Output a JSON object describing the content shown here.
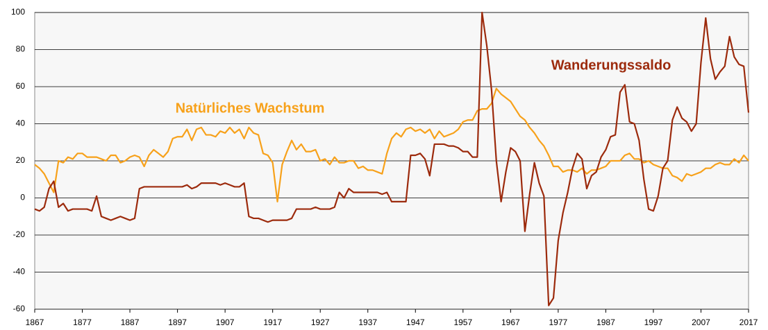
{
  "chart_data": {
    "type": "line",
    "x": [
      1867,
      1868,
      1869,
      1870,
      1871,
      1872,
      1873,
      1874,
      1875,
      1876,
      1877,
      1878,
      1879,
      1880,
      1881,
      1882,
      1883,
      1884,
      1885,
      1886,
      1887,
      1888,
      1889,
      1890,
      1891,
      1892,
      1893,
      1894,
      1895,
      1896,
      1897,
      1898,
      1899,
      1900,
      1901,
      1902,
      1903,
      1904,
      1905,
      1906,
      1907,
      1908,
      1909,
      1910,
      1911,
      1912,
      1913,
      1914,
      1915,
      1916,
      1917,
      1918,
      1919,
      1920,
      1921,
      1922,
      1923,
      1924,
      1925,
      1926,
      1927,
      1928,
      1929,
      1930,
      1931,
      1932,
      1933,
      1934,
      1935,
      1936,
      1937,
      1938,
      1939,
      1940,
      1941,
      1942,
      1943,
      1944,
      1945,
      1946,
      1947,
      1948,
      1949,
      1950,
      1951,
      1952,
      1953,
      1954,
      1955,
      1956,
      1957,
      1958,
      1959,
      1960,
      1961,
      1962,
      1963,
      1964,
      1965,
      1966,
      1967,
      1968,
      1969,
      1970,
      1971,
      1972,
      1973,
      1974,
      1975,
      1976,
      1977,
      1978,
      1979,
      1980,
      1981,
      1982,
      1983,
      1984,
      1985,
      1986,
      1987,
      1988,
      1989,
      1990,
      1991,
      1992,
      1993,
      1994,
      1995,
      1996,
      1997,
      1998,
      1999,
      2000,
      2001,
      2002,
      2003,
      2004,
      2005,
      2006,
      2007,
      2008,
      2009,
      2010,
      2011,
      2012,
      2013,
      2014,
      2015,
      2016,
      2017
    ],
    "series": [
      {
        "name": "Natürliches Wachstum",
        "color": "#f7a11a",
        "values": [
          18,
          16,
          13,
          8,
          3,
          20,
          19,
          22,
          21,
          24,
          24,
          22,
          22,
          22,
          21,
          20,
          23,
          23,
          19,
          20,
          22,
          23,
          22,
          17,
          23,
          26,
          24,
          22,
          25,
          32,
          33,
          33,
          37,
          31,
          37,
          38,
          34,
          34,
          33,
          36,
          35,
          38,
          35,
          37,
          32,
          38,
          35,
          34,
          24,
          23,
          19,
          -2,
          18,
          25,
          31,
          26,
          29,
          25,
          25,
          26,
          20,
          21,
          18,
          22,
          19,
          19,
          20,
          20,
          16,
          17,
          15,
          15,
          14,
          13,
          24,
          32,
          35,
          33,
          37,
          38,
          36,
          37,
          35,
          37,
          32,
          36,
          33,
          34,
          35,
          37,
          41,
          42,
          42,
          47,
          48,
          48,
          51,
          59,
          56,
          54,
          52,
          48,
          44,
          42,
          38,
          35,
          31,
          28,
          23,
          17,
          17,
          14,
          15,
          15,
          14,
          16,
          13,
          15,
          15,
          16,
          17,
          20,
          20,
          20,
          23,
          24,
          21,
          21,
          19,
          20,
          18,
          17,
          16,
          16,
          12,
          11,
          9,
          13,
          12,
          13,
          14,
          16,
          16,
          18,
          19,
          18,
          18,
          21,
          19,
          23,
          20
        ]
      },
      {
        "name": "Wanderungssaldo",
        "color": "#9c2a0c",
        "values": [
          -6,
          -7,
          -5,
          5,
          9,
          -5,
          -3,
          -7,
          -6,
          -6,
          -6,
          -6,
          -7,
          1,
          -10,
          -11,
          -12,
          -11,
          -10,
          -11,
          -12,
          -11,
          5,
          6,
          6,
          6,
          6,
          6,
          6,
          6,
          6,
          6,
          7,
          5,
          6,
          8,
          8,
          8,
          8,
          7,
          8,
          7,
          6,
          6,
          8,
          -10,
          -11,
          -11,
          -12,
          -13,
          -12,
          -12,
          -12,
          -12,
          -11,
          -6,
          -6,
          -6,
          -6,
          -5,
          -6,
          -6,
          -6,
          -5,
          3,
          0,
          5,
          3,
          3,
          3,
          3,
          3,
          3,
          2,
          3,
          -2,
          -2,
          -2,
          -2,
          23,
          23,
          24,
          21,
          12,
          29,
          29,
          29,
          28,
          28,
          27,
          25,
          25,
          22,
          22,
          100,
          82,
          58,
          20,
          -2,
          14,
          27,
          25,
          20,
          -18,
          2,
          19,
          8,
          1,
          -58,
          -54,
          -23,
          -8,
          3,
          16,
          24,
          21,
          5,
          12,
          14,
          22,
          26,
          33,
          34,
          57,
          61,
          41,
          40,
          31,
          10,
          -6,
          -7,
          1,
          16,
          20,
          42,
          49,
          43,
          41,
          36,
          40,
          73,
          97,
          75,
          64,
          68,
          71,
          87,
          76,
          72,
          71,
          46
        ]
      }
    ],
    "xlim": [
      1867,
      2017
    ],
    "xticks": [
      1867,
      1877,
      1887,
      1897,
      1907,
      1917,
      1927,
      1937,
      1947,
      1957,
      1967,
      1977,
      1987,
      1997,
      2007,
      2017
    ],
    "ylim": [
      -60,
      100
    ],
    "yticks": [
      -60,
      -40,
      -20,
      0,
      20,
      40,
      60,
      80,
      100
    ],
    "grid": true
  }
}
